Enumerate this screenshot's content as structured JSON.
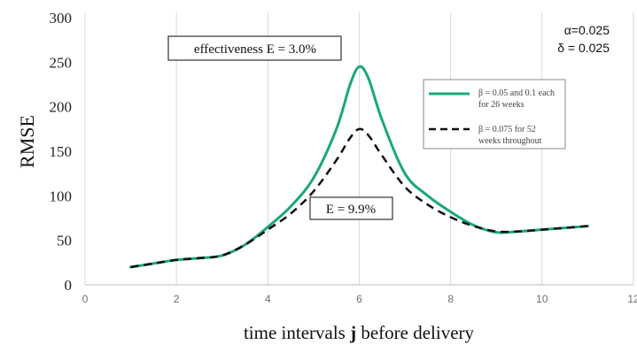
{
  "chart_data": {
    "type": "line",
    "title": "",
    "xlabel_prefix": "time intervals ",
    "xlabel_var": "j",
    "xlabel_suffix": " before delivery",
    "ylabel": "RMSE",
    "xlim": [
      0,
      12
    ],
    "ylim": [
      0,
      300
    ],
    "x_ticks": [
      "0",
      "2",
      "4",
      "6",
      "8",
      "10",
      "12"
    ],
    "y_ticks": [
      "0",
      "50",
      "100",
      "150",
      "200",
      "250",
      "300"
    ],
    "grid": "vertical",
    "legend_position": "right",
    "parameters": [
      "α=0.025",
      "δ = 0.025"
    ],
    "annotations": [
      {
        "text": "effectiveness E = 3.0%"
      },
      {
        "text": "E = 9.9%"
      }
    ],
    "series": [
      {
        "name_lines": [
          "β = 0.05 and 0.1 each",
          "for 26 weeks"
        ],
        "color": "#1aa874",
        "dash": "solid",
        "x": [
          1,
          1.5,
          2,
          2.5,
          3,
          3.5,
          4,
          4.5,
          5,
          5.5,
          5.8,
          6,
          6.2,
          6.5,
          7,
          7.5,
          8,
          8.5,
          9,
          9.5,
          10,
          10.5,
          11
        ],
        "y": [
          20,
          24,
          28,
          30,
          33,
          45,
          65,
          88,
          120,
          175,
          225,
          245,
          232,
          185,
          125,
          100,
          82,
          67,
          59,
          60,
          62,
          64,
          66
        ]
      },
      {
        "name_lines": [
          "β = 0.075 for 52",
          "weeks throughout"
        ],
        "color": "#111111",
        "dash": "dashed",
        "x": [
          1,
          1.5,
          2,
          2.5,
          3,
          3.5,
          4,
          4.5,
          5,
          5.5,
          5.8,
          6,
          6.2,
          6.5,
          7,
          7.5,
          8,
          8.5,
          9,
          9.5,
          10,
          10.5,
          11
        ],
        "y": [
          20,
          24,
          28,
          30,
          33,
          45,
          62,
          80,
          105,
          140,
          165,
          175,
          168,
          145,
          110,
          90,
          76,
          66,
          60,
          60,
          62,
          64,
          66
        ]
      }
    ]
  }
}
